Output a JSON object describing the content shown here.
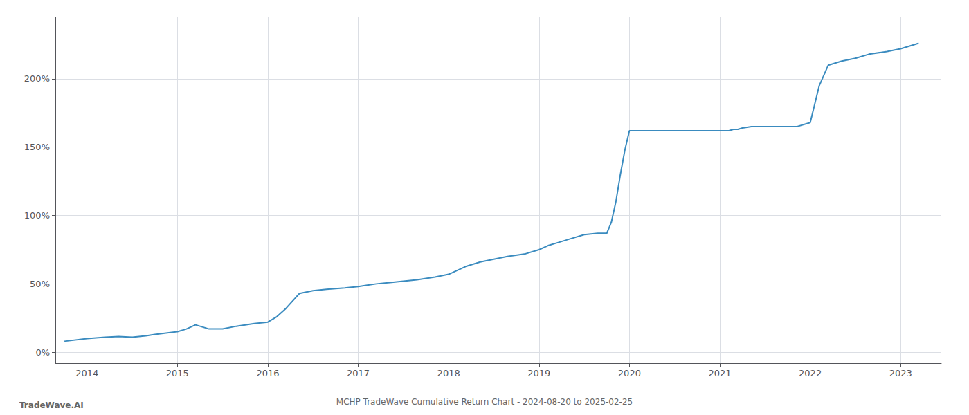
{
  "chart_data": {
    "type": "line",
    "title": "MCHP TradeWave Cumulative Return Chart - 2024-08-20 to 2025-02-25",
    "annotations": [
      "TradeWave.AI"
    ],
    "color": "#3a8bbf",
    "grid": true,
    "x": [
      2013.75,
      2014.0,
      2014.1,
      2014.2,
      2014.35,
      2014.5,
      2014.65,
      2014.75,
      2015.0,
      2015.1,
      2015.2,
      2015.35,
      2015.5,
      2015.65,
      2015.85,
      2016.0,
      2016.1,
      2016.2,
      2016.35,
      2016.5,
      2016.65,
      2016.85,
      2017.0,
      2017.1,
      2017.2,
      2017.35,
      2017.5,
      2017.65,
      2017.85,
      2018.0,
      2018.1,
      2018.2,
      2018.35,
      2018.5,
      2018.65,
      2018.85,
      2019.0,
      2019.1,
      2019.2,
      2019.35,
      2019.5,
      2019.65,
      2019.75,
      2019.8,
      2019.85,
      2019.9,
      2019.95,
      2020.0,
      2020.1,
      2020.2,
      2020.35,
      2020.5,
      2020.65,
      2020.85,
      2021.0,
      2021.1,
      2021.15,
      2021.2,
      2021.25,
      2021.35,
      2021.5,
      2021.65,
      2021.85,
      2022.0,
      2022.1,
      2022.2,
      2022.35,
      2022.5,
      2022.65,
      2022.85,
      2023.0,
      2023.1,
      2023.2
    ],
    "values": [
      8,
      10,
      10.5,
      11,
      11.5,
      11,
      12,
      13,
      15,
      17,
      20,
      17,
      17,
      19,
      21,
      22,
      26,
      32,
      43,
      45,
      46,
      47,
      48,
      49,
      50,
      51,
      52,
      53,
      55,
      57,
      60,
      63,
      66,
      68,
      70,
      72,
      75,
      78,
      80,
      83,
      86,
      87,
      87,
      95,
      110,
      130,
      148,
      162,
      162,
      162,
      162,
      162,
      162,
      162,
      162,
      162,
      163,
      163,
      164,
      165,
      165,
      165,
      165,
      168,
      195,
      210,
      213,
      215,
      218,
      220,
      222,
      224,
      226
    ],
    "xlim": [
      2013.65,
      2023.45
    ],
    "xticks": [
      2014,
      2015,
      2016,
      2017,
      2018,
      2019,
      2020,
      2021,
      2022,
      2023
    ],
    "ylim": [
      -8,
      245
    ],
    "yticks": [
      {
        "value": 0,
        "label": "0%"
      },
      {
        "value": 50,
        "label": "50%"
      },
      {
        "value": 100,
        "label": "100%"
      },
      {
        "value": 150,
        "label": "150%"
      },
      {
        "value": 200,
        "label": "200%"
      }
    ]
  }
}
